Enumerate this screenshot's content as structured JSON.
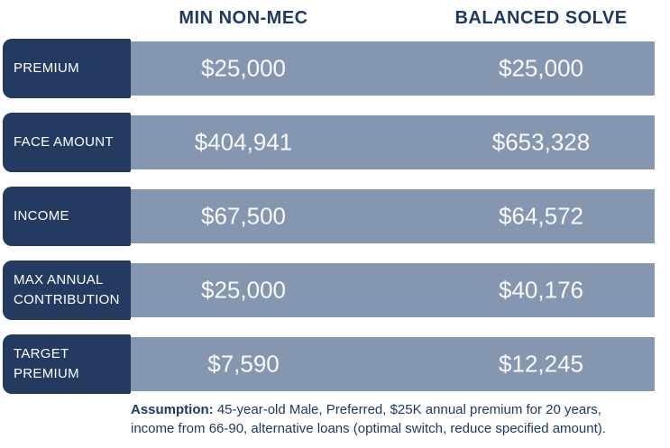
{
  "table": {
    "columns": [
      "MIN NON-MEC",
      "BALANCED SOLVE"
    ],
    "rows": [
      {
        "label": "PREMIUM",
        "values": [
          "$25,000",
          "$25,000"
        ]
      },
      {
        "label": "FACE AMOUNT",
        "values": [
          "$404,941",
          "$653,328"
        ]
      },
      {
        "label": "INCOME",
        "values": [
          "$67,500",
          "$64,572"
        ]
      },
      {
        "label": "MAX ANNUAL CONTRIBUTION",
        "values": [
          "$25,000",
          "$40,176"
        ]
      },
      {
        "label": "TARGET PREMIUM",
        "values": [
          "$7,590",
          "$12,245"
        ]
      }
    ]
  },
  "footnote": {
    "label": "Assumption:",
    "line1": " 45-year-old Male, Preferred, $25K annual premium for 20 years,",
    "line2": "income from 66-90, alternative loans (optimal switch, reduce specified amount)."
  },
  "colors": {
    "navy": "#233B60",
    "bar": "#8496B0",
    "headtext": "#1F3864",
    "valtext": "#FAFAFA",
    "labeltext": "#FFFFFF",
    "bg": "#FFFFFF"
  },
  "chart_data": {
    "type": "table",
    "columns": [
      "",
      "MIN NON-MEC",
      "BALANCED SOLVE"
    ],
    "rows": [
      [
        "PREMIUM",
        "$25,000",
        "$25,000"
      ],
      [
        "FACE AMOUNT",
        "$404,941",
        "$653,328"
      ],
      [
        "INCOME",
        "$67,500",
        "$64,572"
      ],
      [
        "MAX ANNUAL CONTRIBUTION",
        "$25,000",
        "$40,176"
      ],
      [
        "TARGET PREMIUM",
        "$7,590",
        "$12,245"
      ]
    ],
    "footnote": "Assumption: 45-year-old Male, Preferred, $25K annual premium for 20 years, income from 66-90, alternative loans (optimal switch, reduce specified amount)."
  }
}
